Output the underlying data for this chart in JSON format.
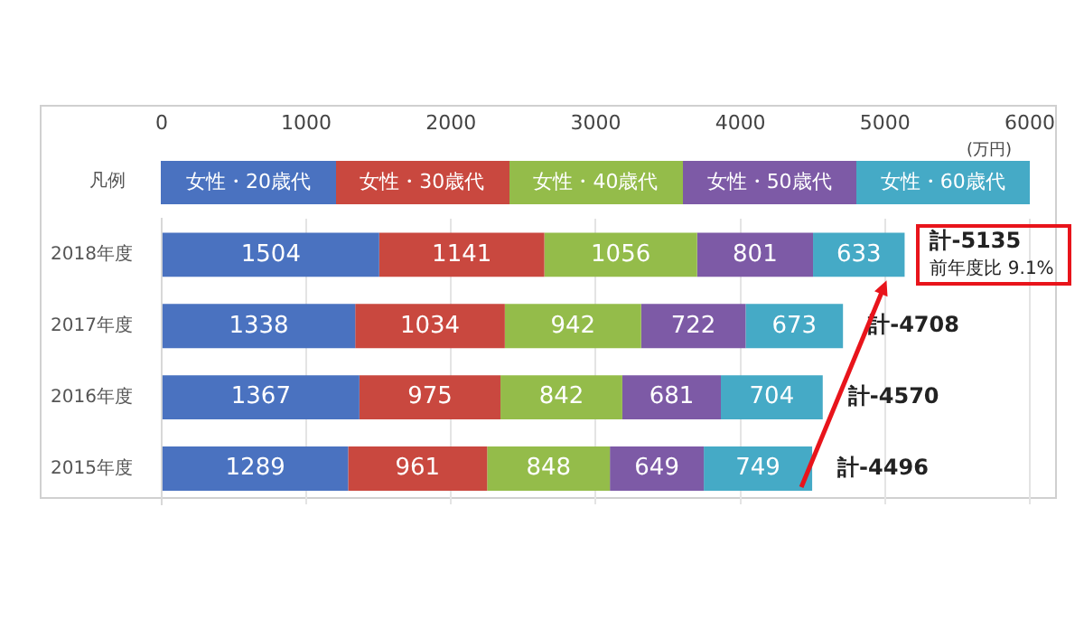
{
  "chart_data": {
    "type": "bar",
    "orientation": "horizontal",
    "stacked": true,
    "categories": [
      "2018年度",
      "2017年度",
      "2016年度",
      "2015年度"
    ],
    "series": [
      {
        "name": "女性・20歳代",
        "color": "#4a72c0",
        "values": [
          1504,
          1338,
          1367,
          1289
        ]
      },
      {
        "name": "女性・30歳代",
        "color": "#c9483f",
        "values": [
          1141,
          1034,
          975,
          961
        ]
      },
      {
        "name": "女性・40歳代",
        "color": "#94bc4a",
        "values": [
          1056,
          942,
          842,
          848
        ]
      },
      {
        "name": "女性・50歳代",
        "color": "#7d5aa6",
        "values": [
          801,
          722,
          681,
          649
        ]
      },
      {
        "name": "女性・60歳代",
        "color": "#45aac6",
        "values": [
          633,
          673,
          704,
          749
        ]
      }
    ],
    "xlim": [
      0,
      6000
    ],
    "xticks": [
      0,
      1000,
      2000,
      3000,
      4000,
      5000,
      6000
    ],
    "xlabel": "(万円)",
    "grid": "x",
    "legend": "top",
    "legend_title": "凡例",
    "data_labels": true,
    "totals": [
      "計-5135",
      "計-4708",
      "計-4570",
      "計-4496"
    ],
    "annotations": [
      "前年度比 9.1%"
    ]
  }
}
